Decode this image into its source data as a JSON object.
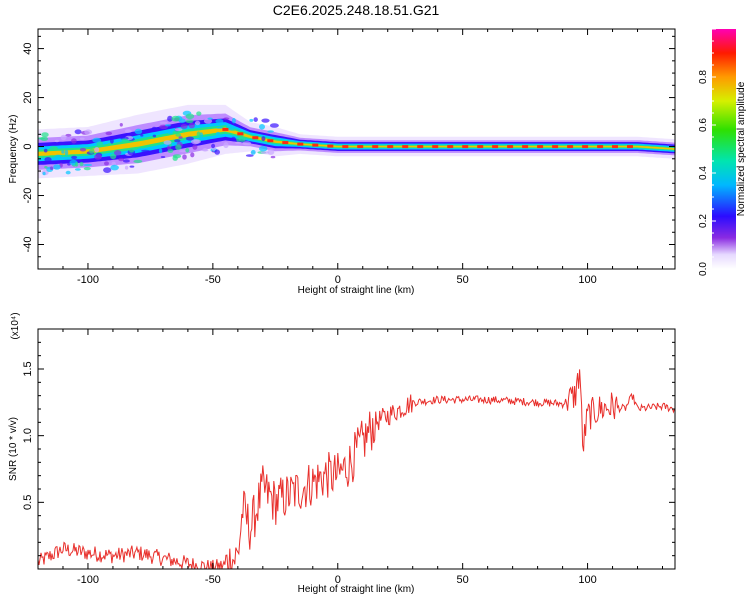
{
  "figure": {
    "title": "C2E6.2025.248.18.51.G21",
    "colors": {
      "snr_line": "#e8302c",
      "axis": "#000000",
      "background": "#ffffff"
    }
  },
  "chart_data": [
    {
      "type": "heatmap",
      "title": "C2E6.2025.248.18.51.G21",
      "xlabel": "Height of straight line (km)",
      "ylabel": "Frequency (Hz)",
      "xlim": [
        -120,
        135
      ],
      "ylim": [
        -50,
        48
      ],
      "xticks": [
        -100,
        -50,
        0,
        50,
        100
      ],
      "yticks": [
        -40,
        -20,
        0,
        20,
        40
      ],
      "colorbar": {
        "label": "Normalized spectral amplitude",
        "range": [
          0,
          1
        ],
        "ticks": [
          0.0,
          0.2,
          0.4,
          0.6,
          0.8
        ],
        "colormap": "rainbow"
      },
      "trend": {
        "x": [
          -120,
          -100,
          -80,
          -60,
          -45,
          -35,
          -25,
          -15,
          0,
          20,
          40,
          60,
          80,
          100,
          120,
          135
        ],
        "freq": [
          -3,
          -2,
          1,
          5,
          7,
          4,
          2,
          1,
          0,
          0,
          0,
          0,
          0,
          0,
          0,
          -1
        ],
        "spread": [
          5,
          5,
          6,
          6,
          5,
          3,
          3,
          2,
          2,
          2,
          2,
          2,
          2,
          2,
          2,
          2
        ]
      }
    },
    {
      "type": "line",
      "xlabel": "Height of straight line (km)",
      "ylabel": "SNR (10 * v/v)",
      "multiplier_label": "(x10⁴)",
      "xlim": [
        -120,
        135
      ],
      "ylim": [
        0,
        1.8
      ],
      "xticks": [
        -100,
        -50,
        0,
        50,
        100
      ],
      "yticks": [
        0.5,
        1.0,
        1.5
      ],
      "series": [
        {
          "name": "SNR",
          "color": "#e8302c",
          "x": [
            -120,
            -110,
            -100,
            -90,
            -80,
            -70,
            -60,
            -50,
            -45,
            -40,
            -38,
            -35,
            -30,
            -25,
            -20,
            -15,
            -10,
            -5,
            0,
            5,
            10,
            15,
            20,
            25,
            30,
            40,
            50,
            60,
            70,
            80,
            90,
            95,
            97,
            98,
            100,
            105,
            110,
            115,
            118,
            120,
            130,
            135
          ],
          "y": [
            0.05,
            0.15,
            0.12,
            0.1,
            0.12,
            0.08,
            0.04,
            0.01,
            0.03,
            0.1,
            0.45,
            0.3,
            0.6,
            0.5,
            0.55,
            0.6,
            0.65,
            0.7,
            0.7,
            0.8,
            0.95,
            1.1,
            1.15,
            1.2,
            1.25,
            1.27,
            1.27,
            1.27,
            1.26,
            1.25,
            1.24,
            1.3,
            1.5,
            0.9,
            1.15,
            1.2,
            1.22,
            1.2,
            1.3,
            1.2,
            1.22,
            1.2
          ]
        }
      ]
    }
  ]
}
